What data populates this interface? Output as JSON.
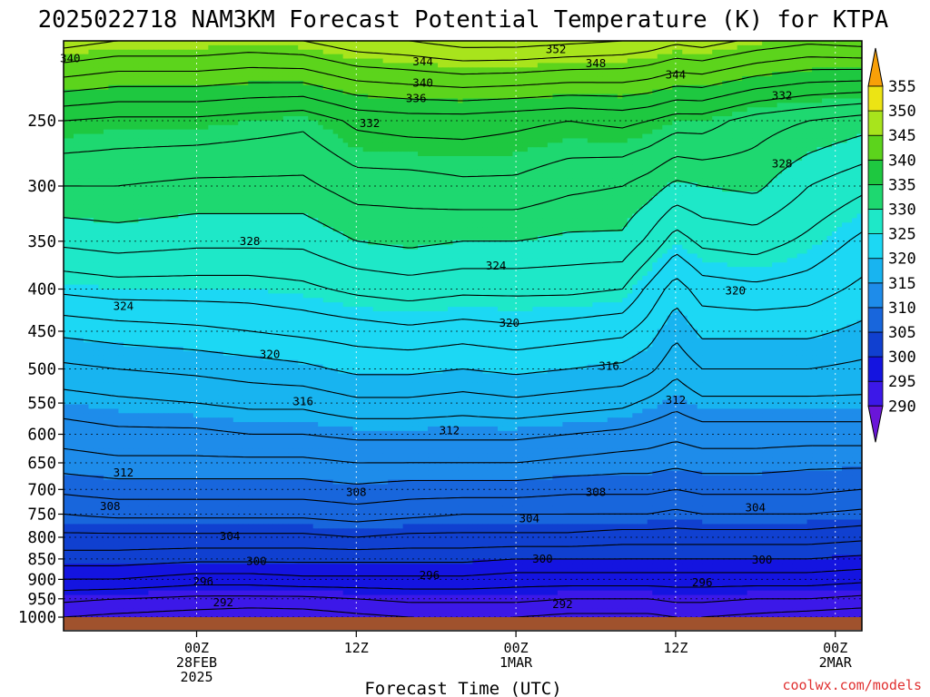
{
  "chart_data": {
    "type": "heatmap",
    "title": "2025022718 NAM3KM Forecast Potential Temperature (K) for KTPA",
    "xlabel": "Forecast Time (UTC)",
    "ylabel": "",
    "watermark": "coolwx.com/models",
    "y_axis": {
      "scale": "log-pressure",
      "reversed": true,
      "range": [
        1000,
        200
      ],
      "ticks": [
        250,
        300,
        350,
        400,
        450,
        500,
        550,
        600,
        650,
        700,
        750,
        800,
        850,
        900,
        950,
        1000
      ]
    },
    "x_axis": {
      "range_hours": [
        -4,
        56
      ],
      "ticks": [
        {
          "hour": 6,
          "label": "00Z",
          "sub1": "28FEB",
          "sub2": "2025"
        },
        {
          "hour": 18,
          "label": "12Z",
          "sub1": "",
          "sub2": ""
        },
        {
          "hour": 30,
          "label": "00Z",
          "sub1": "1MAR",
          "sub2": ""
        },
        {
          "hour": 42,
          "label": "12Z",
          "sub1": "",
          "sub2": ""
        },
        {
          "hour": 54,
          "label": "00Z",
          "sub1": "2MAR",
          "sub2": ""
        }
      ]
    },
    "colorbar": {
      "levels": [
        290,
        295,
        300,
        305,
        310,
        315,
        320,
        325,
        330,
        335,
        340,
        345,
        350,
        355
      ],
      "colors": [
        "#6a16d8",
        "#3c18e8",
        "#1414e0",
        "#1040d0",
        "#1866dc",
        "#1e8cea",
        "#18b4f0",
        "#1cd8f4",
        "#1ee8c8",
        "#1ed870",
        "#1ec840",
        "#5cd41c",
        "#a8e41c",
        "#ece414",
        "#fcc80c",
        "#f8a008"
      ]
    },
    "profile_hours": [
      -4,
      0,
      6,
      10,
      14,
      18,
      22,
      26,
      30,
      34,
      38,
      40,
      42,
      44,
      48,
      52,
      56
    ],
    "profile_levels": [
      1000,
      950,
      900,
      850,
      800,
      750,
      700,
      650,
      600,
      550,
      500,
      450,
      400,
      350,
      300,
      250,
      200
    ],
    "theta_profiles": [
      [
        292.0,
        294.5,
        298.0,
        301.0,
        303.5,
        306.0,
        308.5,
        311.0,
        313.0,
        315.0,
        317.5,
        320.5,
        324.5,
        328.5,
        332.0,
        336.0,
        347.0
      ],
      [
        291.5,
        294.0,
        298.0,
        301.0,
        303.5,
        306.5,
        309.0,
        311.5,
        313.5,
        315.5,
        318.0,
        321.0,
        325.0,
        329.0,
        332.0,
        335.5,
        346.0
      ],
      [
        291.0,
        293.5,
        297.0,
        300.5,
        303.5,
        306.5,
        309.0,
        311.5,
        313.5,
        316.0,
        318.5,
        321.5,
        325.0,
        328.5,
        331.5,
        335.5,
        346.0
      ],
      [
        290.5,
        293.5,
        297.0,
        300.5,
        303.5,
        306.5,
        309.0,
        311.5,
        314.0,
        316.5,
        319.0,
        322.0,
        325.0,
        328.5,
        331.5,
        335.0,
        345.5
      ],
      [
        290.8,
        293.5,
        297.5,
        300.5,
        303.5,
        306.5,
        309.0,
        311.5,
        314.0,
        316.5,
        319.5,
        322.5,
        325.5,
        328.5,
        331.5,
        334.5,
        346.0
      ],
      [
        291.5,
        294.0,
        297.5,
        300.5,
        304.0,
        307.0,
        309.5,
        312.0,
        314.5,
        317.5,
        320.5,
        323.0,
        326.5,
        330.0,
        333.0,
        336.5,
        347.5
      ],
      [
        292.0,
        294.5,
        297.5,
        300.5,
        303.5,
        306.5,
        309.0,
        312.0,
        314.5,
        317.5,
        320.5,
        323.5,
        327.0,
        330.5,
        333.0,
        337.0,
        348.0
      ],
      [
        292.0,
        294.5,
        297.5,
        300.5,
        303.5,
        306.0,
        309.0,
        312.0,
        314.5,
        317.0,
        320.0,
        323.0,
        326.5,
        330.0,
        333.5,
        337.0,
        349.0
      ],
      [
        292.0,
        294.5,
        297.0,
        300.0,
        303.5,
        306.0,
        309.0,
        312.0,
        314.5,
        317.5,
        320.5,
        323.5,
        326.5,
        330.0,
        333.5,
        336.5,
        349.0
      ],
      [
        291.5,
        294.0,
        297.0,
        300.0,
        303.5,
        306.0,
        308.5,
        311.5,
        314.0,
        317.0,
        320.0,
        323.0,
        326.5,
        329.5,
        332.5,
        336.0,
        348.5
      ],
      [
        291.5,
        294.0,
        297.0,
        300.0,
        303.0,
        306.0,
        308.5,
        311.0,
        313.5,
        316.5,
        319.5,
        322.5,
        326.0,
        329.5,
        332.0,
        336.5,
        348.0
      ],
      [
        291.5,
        294.0,
        297.0,
        300.0,
        303.0,
        306.0,
        308.5,
        311.0,
        313.0,
        315.5,
        318.5,
        321.0,
        323.5,
        327.5,
        331.0,
        336.0,
        347.5
      ],
      [
        292.0,
        294.5,
        297.0,
        300.0,
        303.0,
        305.5,
        308.0,
        310.5,
        312.5,
        314.5,
        316.5,
        318.5,
        321.0,
        325.0,
        329.5,
        335.0,
        346.5
      ],
      [
        292.0,
        294.5,
        297.0,
        300.0,
        303.0,
        306.0,
        308.5,
        311.0,
        313.0,
        315.5,
        318.0,
        320.5,
        323.0,
        326.5,
        330.0,
        335.0,
        347.0
      ],
      [
        291.5,
        294.0,
        297.0,
        300.0,
        303.0,
        306.0,
        308.5,
        311.0,
        313.0,
        315.5,
        318.0,
        320.5,
        323.5,
        327.0,
        330.5,
        333.0,
        345.5
      ],
      [
        291.0,
        294.0,
        297.0,
        300.0,
        303.0,
        306.0,
        308.5,
        310.5,
        313.0,
        315.5,
        318.0,
        320.5,
        323.0,
        325.5,
        328.0,
        332.0,
        344.5
      ],
      [
        290.5,
        293.5,
        296.5,
        299.5,
        302.5,
        305.5,
        308.0,
        310.5,
        313.0,
        315.5,
        317.5,
        319.5,
        321.5,
        323.5,
        326.5,
        331.0,
        345.0
      ]
    ],
    "contour_interval": 2,
    "contour_labels": [
      {
        "value": 340,
        "hour": -3.5,
        "p": 210
      },
      {
        "value": 344,
        "hour": 23,
        "p": 212
      },
      {
        "value": 352,
        "hour": 33,
        "p": 205
      },
      {
        "value": 348,
        "hour": 36,
        "p": 213
      },
      {
        "value": 344,
        "hour": 42,
        "p": 220
      },
      {
        "value": 340,
        "hour": 23,
        "p": 225
      },
      {
        "value": 336,
        "hour": 22.5,
        "p": 235
      },
      {
        "value": 332,
        "hour": 50,
        "p": 233
      },
      {
        "value": 332,
        "hour": 19,
        "p": 252
      },
      {
        "value": 328,
        "hour": 50,
        "p": 282
      },
      {
        "value": 328,
        "hour": 10,
        "p": 350
      },
      {
        "value": 324,
        "hour": 28.5,
        "p": 375
      },
      {
        "value": 324,
        "hour": 0.5,
        "p": 420
      },
      {
        "value": 320,
        "hour": 46.5,
        "p": 402
      },
      {
        "value": 320,
        "hour": 29.5,
        "p": 440
      },
      {
        "value": 320,
        "hour": 11.5,
        "p": 480
      },
      {
        "value": 316,
        "hour": 37,
        "p": 496
      },
      {
        "value": 316,
        "hour": 14,
        "p": 548
      },
      {
        "value": 312,
        "hour": 42,
        "p": 546
      },
      {
        "value": 312,
        "hour": 25,
        "p": 594
      },
      {
        "value": 312,
        "hour": 0.5,
        "p": 668
      },
      {
        "value": 308,
        "hour": 36,
        "p": 706
      },
      {
        "value": 308,
        "hour": 18,
        "p": 706
      },
      {
        "value": 308,
        "hour": -0.5,
        "p": 734
      },
      {
        "value": 304,
        "hour": 48,
        "p": 737
      },
      {
        "value": 304,
        "hour": 31,
        "p": 760
      },
      {
        "value": 304,
        "hour": 8.5,
        "p": 798
      },
      {
        "value": 300,
        "hour": 48.5,
        "p": 852
      },
      {
        "value": 300,
        "hour": 32,
        "p": 850
      },
      {
        "value": 300,
        "hour": 10.5,
        "p": 856
      },
      {
        "value": 296,
        "hour": 23.5,
        "p": 890
      },
      {
        "value": 296,
        "hour": 44,
        "p": 908
      },
      {
        "value": 296,
        "hour": 6.5,
        "p": 906
      },
      {
        "value": 292,
        "hour": 33.5,
        "p": 965
      },
      {
        "value": 292,
        "hour": 8,
        "p": 960
      }
    ]
  }
}
